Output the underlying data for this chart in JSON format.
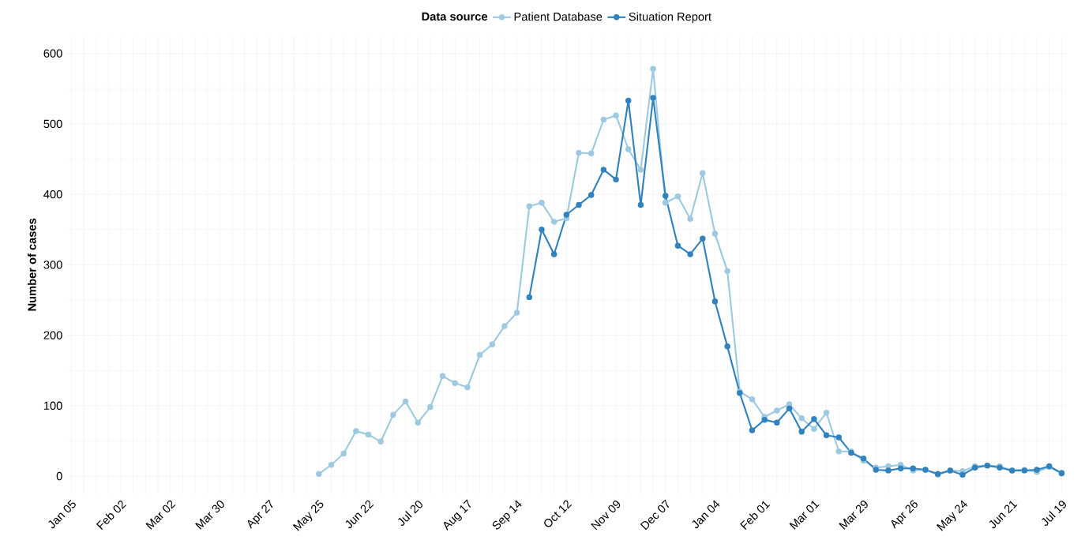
{
  "chart_data": {
    "type": "line",
    "ylabel": "Number of cases",
    "legend_title": "Data source",
    "categories": [
      "Jan 05",
      null,
      null,
      null,
      "Feb 02",
      null,
      null,
      null,
      "Mar 02",
      null,
      null,
      null,
      "Mar 30",
      null,
      null,
      null,
      "Apr 27",
      null,
      null,
      null,
      "May 25",
      null,
      null,
      null,
      "Jun 22",
      null,
      null,
      null,
      "Jul 20",
      null,
      null,
      null,
      "Aug 17",
      null,
      null,
      null,
      "Sep 14",
      null,
      null,
      null,
      "Oct 12",
      null,
      null,
      null,
      "Nov 09",
      null,
      null,
      null,
      "Dec 07",
      null,
      null,
      null,
      "Jan 04",
      null,
      null,
      null,
      "Feb 01",
      null,
      null,
      null,
      "Mar 01",
      null,
      null,
      null,
      "Mar 29",
      null,
      null,
      null,
      "Apr 26",
      null,
      null,
      null,
      "May 24",
      null,
      null,
      null,
      "Jun 21",
      null,
      null,
      null,
      "Jul 19"
    ],
    "series": [
      {
        "name": "Patient Database",
        "color": "#9ecae1",
        "values": [
          null,
          null,
          null,
          null,
          null,
          null,
          null,
          null,
          null,
          null,
          null,
          null,
          null,
          null,
          null,
          null,
          null,
          null,
          null,
          null,
          3,
          16,
          32,
          64,
          59,
          49,
          87,
          106,
          76,
          98,
          142,
          132,
          126,
          172,
          187,
          213,
          232,
          383,
          388,
          361,
          366,
          459,
          458,
          506,
          512,
          464,
          435,
          578,
          388,
          397,
          365,
          430,
          344,
          291,
          120,
          109,
          84,
          93,
          102,
          82,
          67,
          90,
          35,
          35,
          22,
          12,
          14,
          16,
          8,
          9,
          2,
          8,
          7,
          14,
          15,
          14,
          8,
          9,
          6,
          13,
          5
        ]
      },
      {
        "name": "Situation Report",
        "color": "#3182bd",
        "values": [
          null,
          null,
          null,
          null,
          null,
          null,
          null,
          null,
          null,
          null,
          null,
          null,
          null,
          null,
          null,
          null,
          null,
          null,
          null,
          null,
          null,
          null,
          null,
          null,
          null,
          null,
          null,
          null,
          null,
          null,
          null,
          null,
          null,
          null,
          null,
          null,
          null,
          254,
          350,
          315,
          371,
          385,
          399,
          435,
          421,
          533,
          385,
          537,
          398,
          327,
          315,
          337,
          248,
          184,
          118,
          65,
          80,
          76,
          96,
          63,
          81,
          58,
          55,
          33,
          25,
          9,
          8,
          11,
          11,
          9,
          3,
          8,
          2,
          12,
          15,
          12,
          8,
          8,
          9,
          14,
          4
        ]
      }
    ],
    "ylim": [
      -25,
      625
    ],
    "yticks": [
      0,
      100,
      200,
      300,
      400,
      500,
      600
    ],
    "grid": true,
    "legend": "top",
    "marker": "circle",
    "line_style": "solid"
  }
}
